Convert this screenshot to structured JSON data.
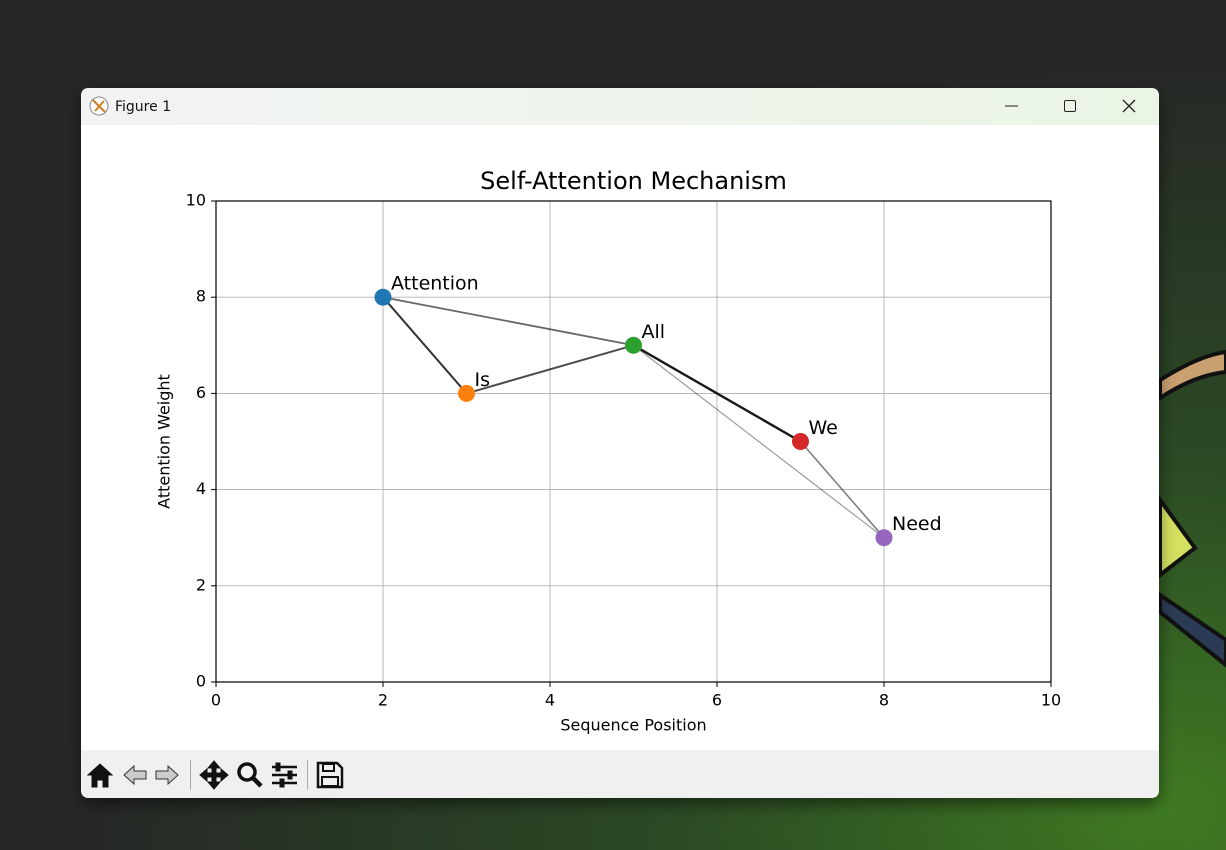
{
  "window": {
    "title": "Figure 1"
  },
  "chart_data": {
    "type": "scatter",
    "title": "Self-Attention Mechanism",
    "x_label": "Sequence Position",
    "y_label": "Attention Weight",
    "labels": [
      "Attention",
      "Is",
      "All",
      "We",
      "Need"
    ],
    "x": [
      2,
      3,
      5,
      7,
      8
    ],
    "values": [
      8,
      6,
      7,
      5,
      3
    ],
    "colors": [
      "#1f77b4",
      "#ff7f0e",
      "#2ca02c",
      "#d62728",
      "#9467bd"
    ],
    "xlim": [
      0,
      10
    ],
    "ylim": [
      0,
      10
    ],
    "xticks": [
      0,
      2,
      4,
      6,
      8,
      10
    ],
    "yticks": [
      0,
      2,
      4,
      6,
      8,
      10
    ],
    "grid": true
  }
}
